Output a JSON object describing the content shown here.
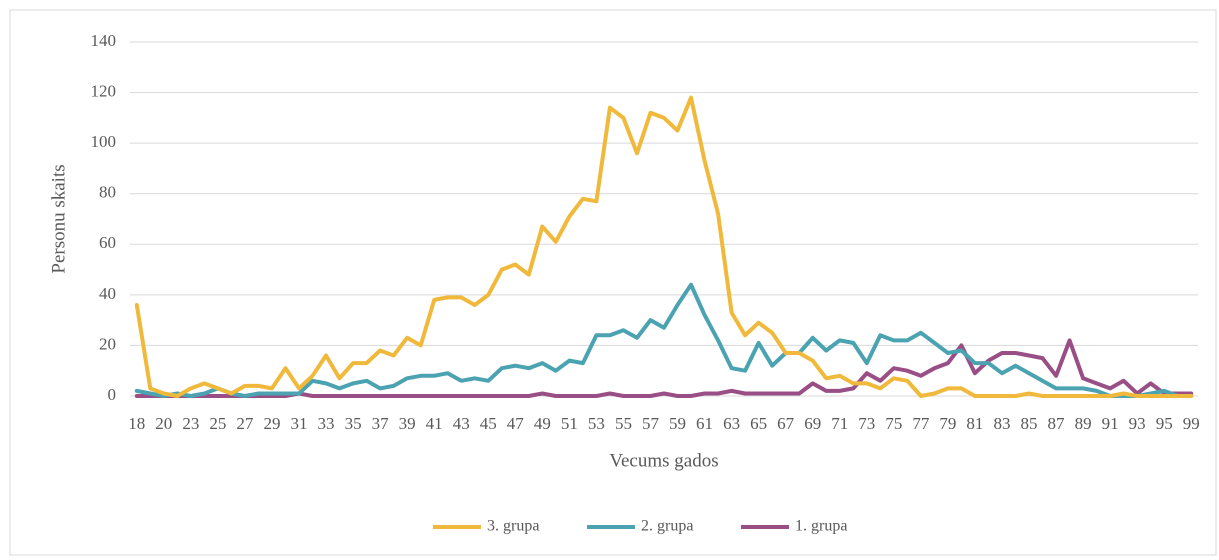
{
  "chart_data": {
    "type": "line",
    "y_label": "Personu skaits",
    "x_label": "Vecums gados",
    "categories": [
      "18",
      null,
      "20",
      null,
      "23",
      null,
      "25",
      null,
      "27",
      null,
      "29",
      null,
      "31",
      null,
      "33",
      null,
      "35",
      null,
      "37",
      null,
      "39",
      null,
      "41",
      null,
      "43",
      null,
      "45",
      null,
      "47",
      null,
      "49",
      null,
      "51",
      null,
      "53",
      null,
      "55",
      null,
      "57",
      null,
      "59",
      null,
      "61",
      null,
      "63",
      null,
      "65",
      null,
      "67",
      null,
      "69",
      null,
      "71",
      null,
      "73",
      null,
      "75",
      null,
      "77",
      null,
      "79",
      null,
      "81",
      null,
      "83",
      null,
      "85",
      null,
      "87",
      null,
      "89",
      null,
      "91",
      null,
      "93",
      null,
      "95",
      null,
      "99"
    ],
    "series": [
      {
        "name": "3. grupa",
        "color": "#f0b93b",
        "values": [
          36,
          3,
          1,
          0,
          3,
          5,
          3,
          1,
          4,
          4,
          3,
          11,
          3,
          8,
          16,
          7,
          13,
          13,
          18,
          16,
          23,
          20,
          38,
          39,
          39,
          36,
          40,
          50,
          52,
          48,
          67,
          61,
          71,
          78,
          77,
          114,
          110,
          96,
          112,
          110,
          105,
          118,
          93,
          72,
          33,
          24,
          29,
          25,
          17,
          17,
          14,
          7,
          8,
          5,
          5,
          3,
          7,
          6,
          0,
          1,
          3,
          3,
          0,
          0,
          0,
          0,
          1,
          0,
          0,
          0,
          0,
          0,
          0,
          1,
          0,
          0,
          0,
          0,
          0
        ]
      },
      {
        "name": "2. grupa",
        "color": "#4ba3b1",
        "values": [
          2,
          1,
          0,
          1,
          0,
          1,
          3,
          1,
          0,
          1,
          1,
          1,
          1,
          6,
          5,
          3,
          5,
          6,
          3,
          4,
          7,
          8,
          8,
          9,
          6,
          7,
          6,
          11,
          12,
          11,
          13,
          10,
          14,
          13,
          24,
          24,
          26,
          23,
          30,
          27,
          36,
          44,
          32,
          22,
          11,
          10,
          21,
          12,
          17,
          17,
          23,
          18,
          22,
          21,
          13,
          24,
          22,
          22,
          25,
          21,
          17,
          18,
          13,
          13,
          9,
          12,
          9,
          6,
          3,
          3,
          3,
          2,
          0,
          0,
          0,
          1,
          2,
          0,
          0
        ]
      },
      {
        "name": "1. grupa",
        "color": "#9a4e86",
        "values": [
          0,
          0,
          0,
          0,
          0,
          0,
          0,
          0,
          0,
          0,
          0,
          0,
          1,
          0,
          0,
          0,
          0,
          0,
          0,
          0,
          0,
          0,
          0,
          0,
          0,
          0,
          0,
          0,
          0,
          0,
          1,
          0,
          0,
          0,
          0,
          1,
          0,
          0,
          0,
          1,
          0,
          0,
          1,
          1,
          2,
          1,
          1,
          1,
          1,
          1,
          5,
          2,
          2,
          3,
          9,
          6,
          11,
          10,
          8,
          11,
          13,
          20,
          9,
          14,
          17,
          17,
          16,
          15,
          8,
          22,
          7,
          5,
          3,
          6,
          1,
          5,
          1,
          1,
          1
        ]
      }
    ],
    "ylim": [
      0,
      140
    ],
    "yticks": [
      0,
      20,
      40,
      60,
      80,
      100,
      120,
      140
    ],
    "grid": true,
    "legend": "bottom"
  }
}
